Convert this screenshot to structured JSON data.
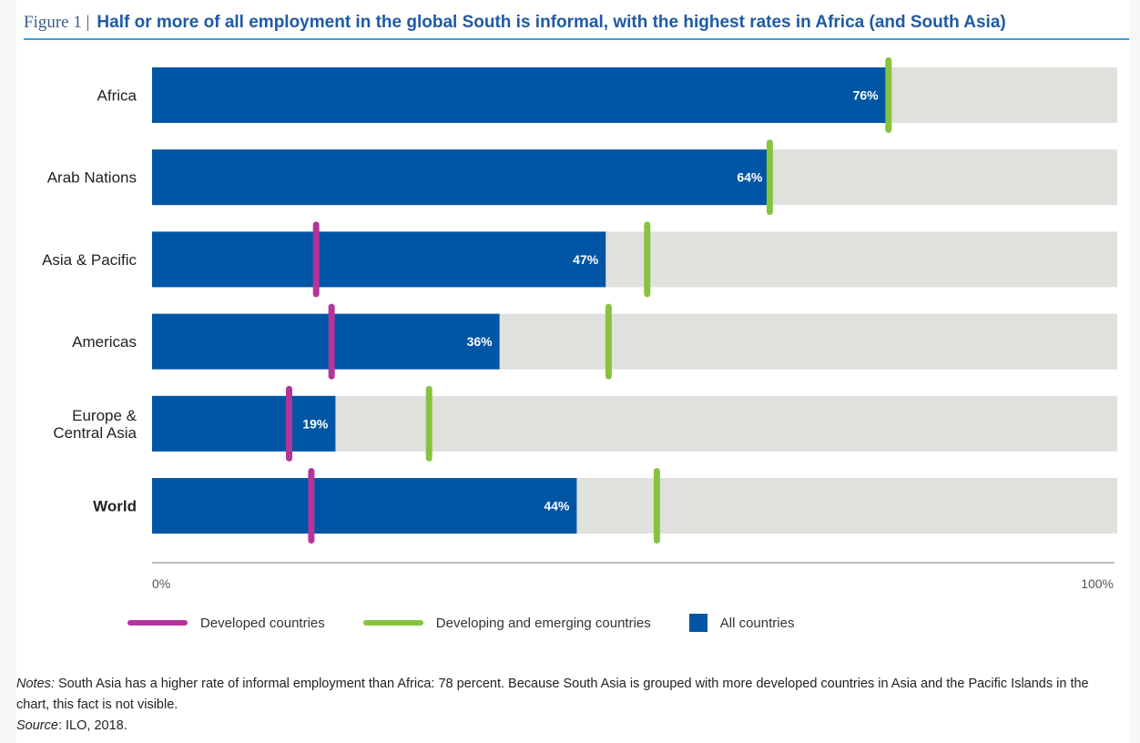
{
  "figure": {
    "label": "Figure 1 |",
    "title": "Half or more of all employment in the global South is informal, with the highest rates in Africa (and South Asia)"
  },
  "colors": {
    "all_countries": "#0055a5",
    "developed": "#b3359a",
    "developing": "#86c440",
    "track": "#e0e0dc",
    "axis": "#bfbfbf"
  },
  "chart_data": {
    "type": "bar",
    "orientation": "horizontal",
    "xlim": [
      0,
      100
    ],
    "x_tick_labels": [
      "0%",
      "100%"
    ],
    "categories": [
      {
        "lines": [
          "Africa"
        ],
        "bold": false
      },
      {
        "lines": [
          "Arab Nations"
        ],
        "bold": false
      },
      {
        "lines": [
          "Asia & Pacific"
        ],
        "bold": false
      },
      {
        "lines": [
          "Americas"
        ],
        "bold": false
      },
      {
        "lines": [
          "Europe &",
          "Central Asia"
        ],
        "bold": false
      },
      {
        "lines": [
          "World"
        ],
        "bold": true
      }
    ],
    "series": [
      {
        "name": "All countries",
        "values": [
          76,
          64,
          47,
          36,
          19,
          44
        ]
      },
      {
        "name": "Developed countries",
        "values": [
          null,
          null,
          17,
          18.6,
          14.2,
          16.5
        ]
      },
      {
        "name": "Developing and emerging countries",
        "values": [
          76.3,
          64,
          51.3,
          47.3,
          28.7,
          52.3
        ]
      }
    ],
    "value_labels": [
      "76%",
      "64%",
      "47%",
      "36%",
      "19%",
      "44%"
    ],
    "legend": [
      "Developed countries",
      "Developing and emerging countries",
      "All countries"
    ],
    "legend_position": "bottom"
  },
  "notes": {
    "notes_label": "Notes:",
    "notes_text": " South Asia has a higher rate of informal employment than Africa: 78 percent. Because South Asia is grouped with more developed countries in Asia and the Pacific Islands in the chart, this fact is not visible.",
    "source_label": "Source",
    "source_text": ": ILO, 2018."
  }
}
